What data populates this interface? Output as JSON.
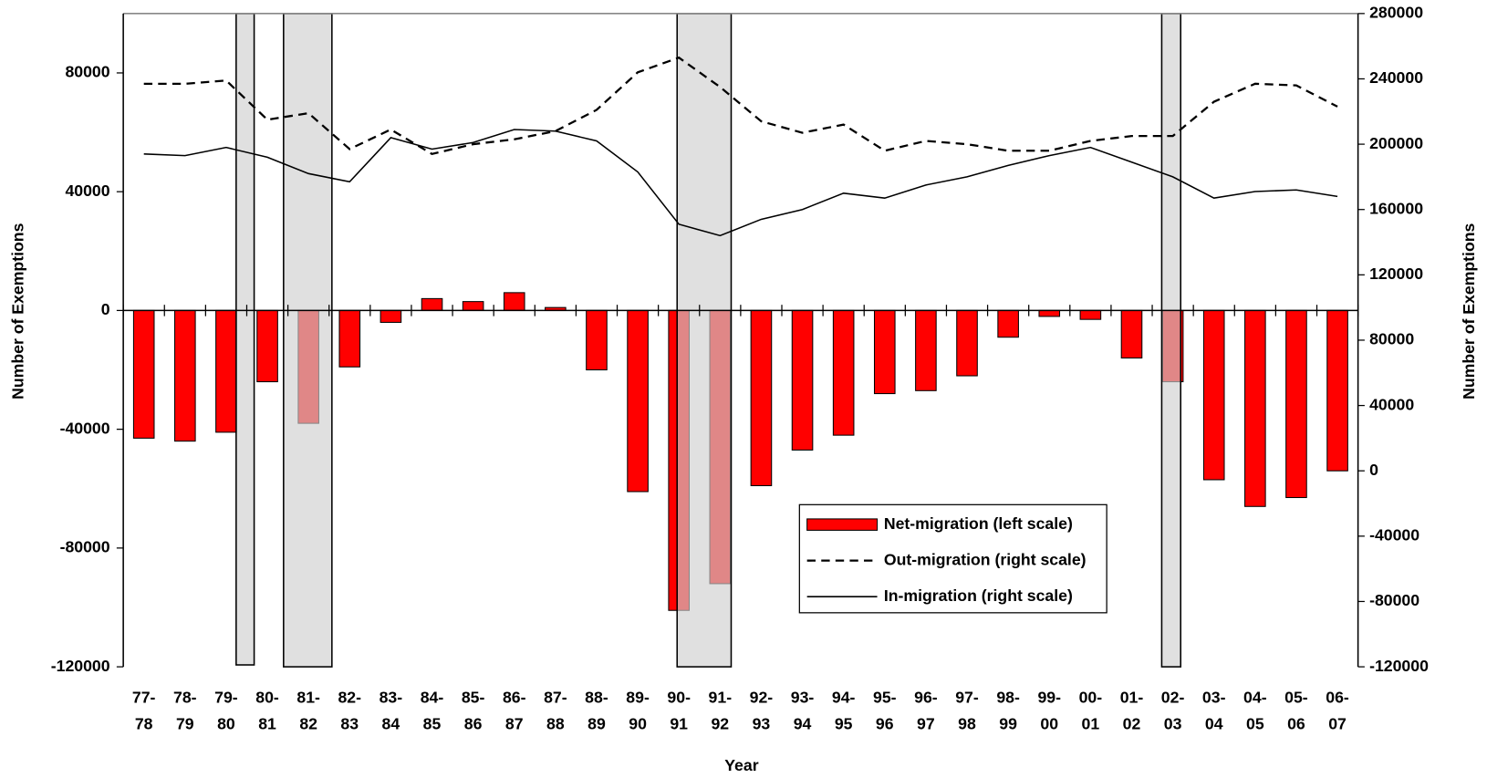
{
  "chart_data": {
    "type": "bar-line",
    "x_label": "Year",
    "y_label": "Number of Exemptions",
    "y2_label": "Number of Exemptions",
    "categories": [
      "77-\n78",
      "78-\n79",
      "79-\n80",
      "80-\n81",
      "81-\n82",
      "82-\n83",
      "83-\n84",
      "84-\n85",
      "85-\n86",
      "86-\n87",
      "87-\n88",
      "88-\n89",
      "89-\n90",
      "90-\n91",
      "91-\n92",
      "92-\n93",
      "93-\n94",
      "94-\n95",
      "95-\n96",
      "96-\n97",
      "97-\n98",
      "98-\n99",
      "99-\n00",
      "00-\n01",
      "01-\n02",
      "02-\n03",
      "03-\n04",
      "04-\n05",
      "05-\n06",
      "06-\n07"
    ],
    "series": [
      {
        "name": "Net-migration (left scale)",
        "type": "bar",
        "color": "#ff0000",
        "values": [
          -43000,
          -44000,
          -41000,
          -24000,
          -38000,
          -19000,
          -4000,
          4000,
          3000,
          6000,
          1000,
          -20000,
          -61000,
          -101000,
          -92000,
          -59000,
          -47000,
          -42000,
          -28000,
          -27000,
          -22000,
          -9000,
          -2000,
          -3000,
          -16000,
          -24000,
          -57000,
          -66000,
          -63000,
          -54000
        ]
      },
      {
        "name": "Out-migration (right scale)",
        "type": "line",
        "axis": "y2",
        "color": "#000000",
        "line_style": "dashed",
        "values": [
          237000,
          237000,
          239000,
          215000,
          219000,
          197000,
          209000,
          194000,
          200000,
          203000,
          208000,
          221000,
          244000,
          253000,
          235000,
          214000,
          207000,
          212000,
          196000,
          202000,
          200000,
          196000,
          196000,
          202000,
          205000,
          205000,
          226000,
          237000,
          236000,
          223000
        ]
      },
      {
        "name": "In-migration (right scale)",
        "type": "line",
        "axis": "y2",
        "color": "#000000",
        "line_style": "solid",
        "values": [
          194000,
          193000,
          198000,
          192000,
          182000,
          177000,
          204000,
          197000,
          201000,
          209000,
          208000,
          202000,
          183000,
          151000,
          144000,
          154000,
          160000,
          170000,
          167000,
          175000,
          180000,
          187000,
          193000,
          198000,
          189000,
          180000,
          167000,
          171000,
          172000,
          168000
        ]
      }
    ],
    "ylim": [
      -120000,
      100000
    ],
    "yticks": [
      -120000,
      -80000,
      -40000,
      0,
      40000,
      80000
    ],
    "y2lim": [
      -120000,
      280000
    ],
    "y2ticks": [
      -120000,
      -80000,
      -40000,
      0,
      40000,
      80000,
      120000,
      160000,
      200000,
      240000,
      280000
    ]
  }
}
